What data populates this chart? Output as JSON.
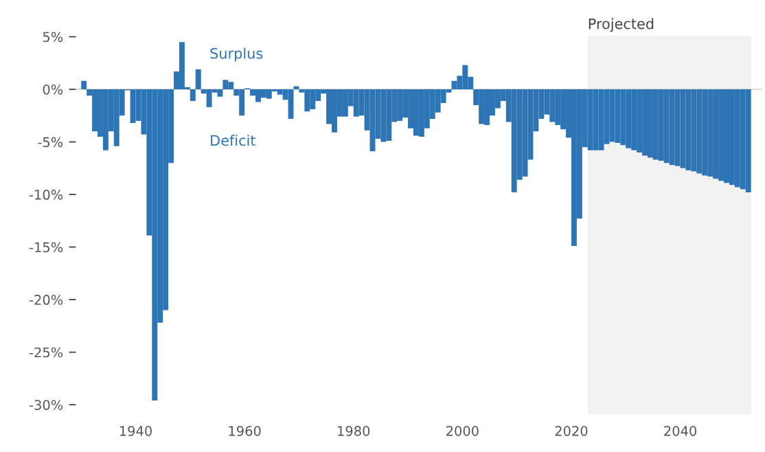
{
  "chart_data": {
    "type": "bar",
    "x": [
      1930,
      1931,
      1932,
      1933,
      1934,
      1935,
      1936,
      1937,
      1938,
      1939,
      1940,
      1941,
      1942,
      1943,
      1944,
      1945,
      1946,
      1947,
      1948,
      1949,
      1950,
      1951,
      1952,
      1953,
      1954,
      1955,
      1956,
      1957,
      1958,
      1959,
      1960,
      1961,
      1962,
      1963,
      1964,
      1965,
      1966,
      1967,
      1968,
      1969,
      1970,
      1971,
      1972,
      1973,
      1974,
      1975,
      1976,
      1977,
      1978,
      1979,
      1980,
      1981,
      1982,
      1983,
      1984,
      1985,
      1986,
      1987,
      1988,
      1989,
      1990,
      1991,
      1992,
      1993,
      1994,
      1995,
      1996,
      1997,
      1998,
      1999,
      2000,
      2001,
      2002,
      2003,
      2004,
      2005,
      2006,
      2007,
      2008,
      2009,
      2010,
      2011,
      2012,
      2013,
      2014,
      2015,
      2016,
      2017,
      2018,
      2019,
      2020,
      2021,
      2022,
      2023,
      2024,
      2025,
      2026,
      2027,
      2028,
      2029,
      2030,
      2031,
      2032,
      2033,
      2034,
      2035,
      2036,
      2037,
      2038,
      2039,
      2040,
      2041,
      2042,
      2043,
      2044,
      2045,
      2046,
      2047,
      2048,
      2049,
      2050,
      2051,
      2052
    ],
    "values": [
      0.8,
      -0.6,
      -4.0,
      -4.5,
      -5.8,
      -4.0,
      -5.4,
      -2.5,
      -0.1,
      -3.2,
      -3.0,
      -4.3,
      -13.9,
      -29.6,
      -22.2,
      -21.0,
      -7.0,
      1.7,
      4.5,
      0.2,
      -1.1,
      1.9,
      -0.4,
      -1.7,
      -0.3,
      -0.7,
      0.9,
      0.7,
      -0.6,
      -2.5,
      0.1,
      -0.6,
      -1.2,
      -0.8,
      -0.9,
      -0.2,
      -0.5,
      -1.0,
      -2.8,
      0.3,
      -0.3,
      -2.1,
      -1.9,
      -1.1,
      -0.4,
      -3.3,
      -4.1,
      -2.6,
      -2.6,
      -1.6,
      -2.6,
      -2.5,
      -3.9,
      -5.9,
      -4.7,
      -5.0,
      -4.9,
      -3.1,
      -3.0,
      -2.7,
      -3.7,
      -4.4,
      -4.5,
      -3.7,
      -2.8,
      -2.2,
      -1.3,
      -0.3,
      0.8,
      1.3,
      2.3,
      1.2,
      -1.5,
      -3.3,
      -3.4,
      -2.5,
      -1.8,
      -1.1,
      -3.1,
      -9.8,
      -8.6,
      -8.3,
      -6.7,
      -4.0,
      -2.8,
      -2.4,
      -3.1,
      -3.4,
      -3.8,
      -4.6,
      -14.9,
      -12.3,
      -5.5,
      -5.8,
      -5.8,
      -5.8,
      -5.2,
      -5.0,
      -5.1,
      -5.3,
      -5.6,
      -5.8,
      -6.0,
      -6.3,
      -6.5,
      -6.7,
      -6.8,
      -7.0,
      -7.2,
      -7.3,
      -7.5,
      -7.7,
      -7.8,
      -8.0,
      -8.2,
      -8.3,
      -8.5,
      -8.7,
      -8.9,
      -9.1,
      -9.3,
      -9.5,
      -9.8
    ],
    "color": "#2e75b6",
    "xlim": [
      1929,
      2055
    ],
    "xticks": [
      1940,
      1960,
      1980,
      2000,
      2020,
      2040
    ],
    "ylim": [
      -30.9,
      5.1
    ],
    "yticks": [
      {
        "value": 5,
        "label": "5%"
      },
      {
        "value": 0,
        "label": "0%"
      },
      {
        "value": -5,
        "label": "-5%"
      },
      {
        "value": -10,
        "label": "-10%"
      },
      {
        "value": -15,
        "label": "-15%"
      },
      {
        "value": -20,
        "label": "-20%"
      },
      {
        "value": -25,
        "label": "-25%"
      },
      {
        "value": -30,
        "label": "-30%"
      }
    ],
    "ref_lines": [
      {
        "axis": "y",
        "value": 0,
        "color": "#cccccc"
      }
    ],
    "bands": [
      {
        "axis": "x",
        "from": 2023,
        "to": 2053,
        "label": "Projected",
        "color": "#f2f2f2"
      }
    ],
    "annotations": [
      "Surplus",
      "Deficit"
    ],
    "grid": false
  }
}
